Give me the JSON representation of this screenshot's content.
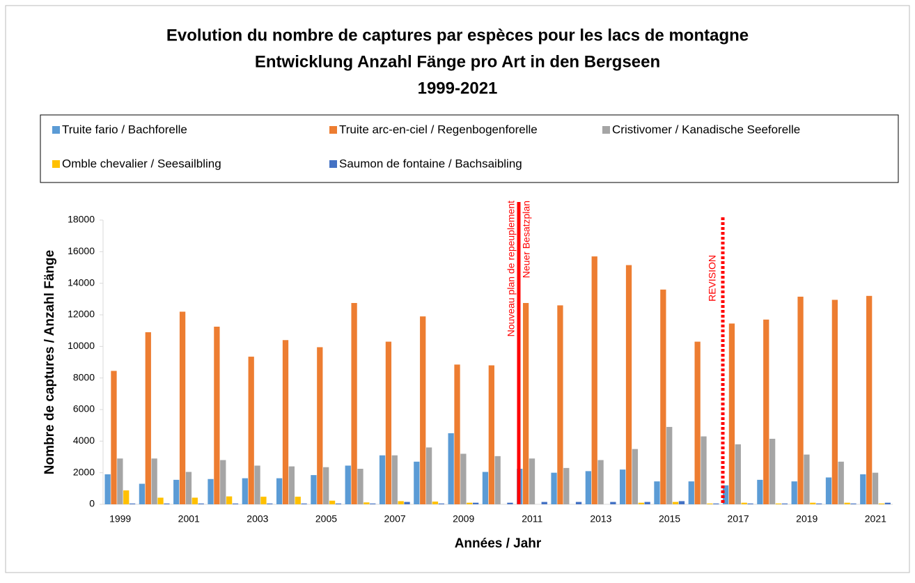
{
  "chart_data": {
    "type": "bar",
    "title": [
      "Evolution du nombre de captures par espèces pour les lacs de montagne",
      "Entwicklung Anzahl Fänge pro Art in den Bergseen",
      "1999-2021"
    ],
    "x_label": "Années / Jahr",
    "y_label": "Nombre de captures / Anzahl Fänge",
    "categories": [
      "1999",
      null,
      "2001",
      null,
      "2003",
      null,
      "2005",
      null,
      "2007",
      null,
      "2009",
      null,
      "2011",
      null,
      "2013",
      null,
      "2015",
      null,
      "2017",
      null,
      "2019",
      null,
      "2021"
    ],
    "series": [
      {
        "name": "Truite fario / Bachforelle",
        "color": "#5b9bd5",
        "values": [
          1900,
          1300,
          1550,
          1600,
          1650,
          1650,
          1850,
          2450,
          3100,
          2700,
          4500,
          2050,
          2250,
          2000,
          2100,
          2200,
          1450,
          1450,
          1200,
          1550,
          1450,
          1700,
          1900
        ]
      },
      {
        "name": "Truite arc-en-ciel / Regenbogenforelle",
        "color": "#ed7d31",
        "values": [
          8450,
          10900,
          12200,
          11250,
          9350,
          10400,
          9950,
          12750,
          10300,
          11900,
          8850,
          8800,
          12750,
          12600,
          15700,
          15150,
          13600,
          10300,
          11450,
          11700,
          13150,
          12950,
          13200
        ]
      },
      {
        "name": "Cristivomer / Kanadische Seeforelle",
        "color": "#a5a5a5",
        "values": [
          2900,
          2900,
          2050,
          2800,
          2450,
          2400,
          2350,
          2250,
          3100,
          3600,
          3200,
          3050,
          2900,
          2300,
          2800,
          3500,
          4900,
          4300,
          3800,
          4150,
          3150,
          2700,
          2000
        ]
      },
      {
        "name": "Omble chevalier / Seesailbling",
        "color": "#ffc000",
        "values": [
          880,
          420,
          420,
          500,
          480,
          480,
          230,
          120,
          200,
          170,
          100,
          0,
          0,
          0,
          0,
          100,
          150,
          50,
          100,
          50,
          100,
          100,
          50
        ]
      },
      {
        "name": "Saumon de fontaine / Bachsaibling",
        "color": "#4472c4",
        "values": [
          50,
          50,
          50,
          50,
          50,
          50,
          50,
          50,
          150,
          50,
          100,
          100,
          150,
          150,
          150,
          150,
          200,
          50,
          50,
          50,
          50,
          50,
          100
        ]
      }
    ],
    "ylim": [
      0,
      18000
    ],
    "yticks": [
      0,
      2000,
      4000,
      6000,
      8000,
      10000,
      12000,
      14000,
      16000,
      18000
    ],
    "annotations": [
      {
        "lines": [
          "Nouveau plan de repeuplement",
          "Neuer Besatzplan"
        ],
        "color": "#ff0000",
        "style": "solid"
      },
      {
        "lines": [
          "REVISION"
        ],
        "color": "#ff0000",
        "style": "dotted"
      }
    ]
  }
}
